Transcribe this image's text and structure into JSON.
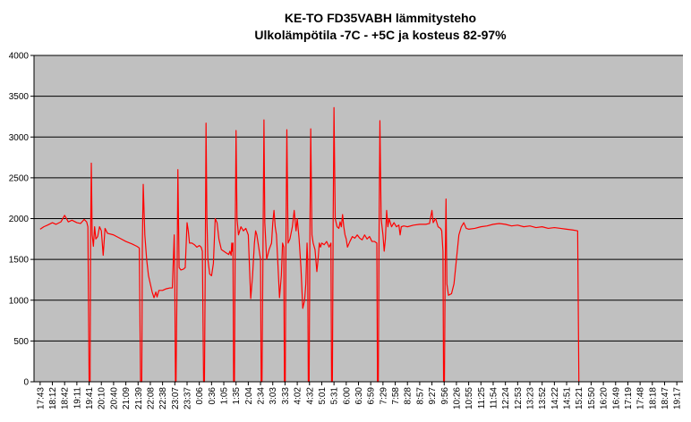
{
  "chart_data": {
    "type": "line",
    "title": "KE-TO FD35VABH lämmitysteho",
    "subtitle": "Ulkolämpötila  -7C - +5C ja kosteus 82-97%",
    "xlabel": "",
    "ylabel": "",
    "ylim": [
      0,
      4000
    ],
    "yticks": [
      0,
      500,
      1000,
      1500,
      2000,
      2500,
      3000,
      3500,
      4000
    ],
    "grid": true,
    "background_color": "#c0c0c0",
    "series_color": "#ff0000",
    "categories": [
      "17:43",
      "18:12",
      "18:42",
      "19:11",
      "19:41",
      "20:10",
      "20:40",
      "21:09",
      "21:39",
      "22:08",
      "22:38",
      "23:07",
      "23:37",
      "0:06",
      "0:36",
      "1:05",
      "1:35",
      "2:04",
      "2:34",
      "3:03",
      "3:33",
      "4:02",
      "4:32",
      "5:01",
      "5:31",
      "6:00",
      "6:30",
      "6:59",
      "7:29",
      "7:58",
      "8:28",
      "8:57",
      "9:27",
      "9:56",
      "10:26",
      "10:55",
      "11:25",
      "11:54",
      "12:24",
      "12:53",
      "13:23",
      "13:52",
      "14:22",
      "14:51",
      "15:21",
      "15:50",
      "16:20",
      "16:49",
      "17:19",
      "17:48",
      "18:18",
      "18:47",
      "19:17"
    ],
    "series": [
      {
        "points": [
          [
            0,
            1870
          ],
          [
            0.3,
            1900
          ],
          [
            0.6,
            1920
          ],
          [
            1.0,
            1950
          ],
          [
            1.3,
            1930
          ],
          [
            1.7,
            1960
          ],
          [
            2.0,
            2040
          ],
          [
            2.3,
            1960
          ],
          [
            2.6,
            1980
          ],
          [
            3.0,
            1950
          ],
          [
            3.3,
            1940
          ],
          [
            3.6,
            1990
          ],
          [
            3.8,
            1960
          ],
          [
            3.9,
            1900
          ],
          [
            4.0,
            0
          ],
          [
            4.08,
            0
          ],
          [
            4.12,
            1750
          ],
          [
            4.18,
            2680
          ],
          [
            4.25,
            1800
          ],
          [
            4.35,
            1660
          ],
          [
            4.45,
            1900
          ],
          [
            4.55,
            1750
          ],
          [
            4.7,
            1780
          ],
          [
            4.85,
            1900
          ],
          [
            5.0,
            1850
          ],
          [
            5.15,
            1550
          ],
          [
            5.3,
            1880
          ],
          [
            5.5,
            1820
          ],
          [
            6.0,
            1800
          ],
          [
            6.5,
            1760
          ],
          [
            7.0,
            1720
          ],
          [
            7.5,
            1690
          ],
          [
            7.9,
            1660
          ],
          [
            8.1,
            1640
          ],
          [
            8.2,
            0
          ],
          [
            8.3,
            0
          ],
          [
            8.35,
            1700
          ],
          [
            8.42,
            2420
          ],
          [
            8.55,
            1800
          ],
          [
            8.7,
            1500
          ],
          [
            8.85,
            1300
          ],
          [
            9.0,
            1200
          ],
          [
            9.15,
            1100
          ],
          [
            9.3,
            1030
          ],
          [
            9.45,
            1100
          ],
          [
            9.55,
            1040
          ],
          [
            9.7,
            1120
          ],
          [
            10.0,
            1120
          ],
          [
            10.3,
            1140
          ],
          [
            10.6,
            1150
          ],
          [
            10.8,
            1150
          ],
          [
            10.95,
            1800
          ],
          [
            11.0,
            1200
          ],
          [
            11.05,
            0
          ],
          [
            11.1,
            0
          ],
          [
            11.18,
            1200
          ],
          [
            11.25,
            2600
          ],
          [
            11.35,
            1400
          ],
          [
            11.5,
            1370
          ],
          [
            11.7,
            1380
          ],
          [
            11.85,
            1400
          ],
          [
            12.0,
            1950
          ],
          [
            12.1,
            1850
          ],
          [
            12.2,
            1700
          ],
          [
            12.4,
            1700
          ],
          [
            12.6,
            1680
          ],
          [
            12.8,
            1650
          ],
          [
            13.0,
            1670
          ],
          [
            13.15,
            1650
          ],
          [
            13.25,
            1600
          ],
          [
            13.35,
            0
          ],
          [
            13.42,
            0
          ],
          [
            13.48,
            1300
          ],
          [
            13.55,
            3170
          ],
          [
            13.62,
            2000
          ],
          [
            13.7,
            1500
          ],
          [
            13.85,
            1320
          ],
          [
            14.0,
            1300
          ],
          [
            14.15,
            1450
          ],
          [
            14.3,
            2000
          ],
          [
            14.45,
            1950
          ],
          [
            14.6,
            1750
          ],
          [
            14.8,
            1620
          ],
          [
            15.0,
            1600
          ],
          [
            15.2,
            1580
          ],
          [
            15.4,
            1560
          ],
          [
            15.5,
            1600
          ],
          [
            15.6,
            1550
          ],
          [
            15.65,
            1700
          ],
          [
            15.7,
            1600
          ],
          [
            15.75,
            1700
          ],
          [
            15.8,
            0
          ],
          [
            15.87,
            0
          ],
          [
            15.93,
            1700
          ],
          [
            16.0,
            3080
          ],
          [
            16.08,
            2000
          ],
          [
            16.2,
            1800
          ],
          [
            16.4,
            1900
          ],
          [
            16.6,
            1850
          ],
          [
            16.8,
            1880
          ],
          [
            17.0,
            1800
          ],
          [
            17.1,
            1400
          ],
          [
            17.2,
            1020
          ],
          [
            17.35,
            1300
          ],
          [
            17.5,
            1700
          ],
          [
            17.6,
            1850
          ],
          [
            17.7,
            1800
          ],
          [
            17.85,
            1650
          ],
          [
            18.0,
            1500
          ],
          [
            18.05,
            0
          ],
          [
            18.12,
            0
          ],
          [
            18.2,
            1600
          ],
          [
            18.28,
            3210
          ],
          [
            18.35,
            1950
          ],
          [
            18.5,
            1500
          ],
          [
            18.7,
            1620
          ],
          [
            18.9,
            1700
          ],
          [
            19.0,
            1950
          ],
          [
            19.1,
            2100
          ],
          [
            19.2,
            1900
          ],
          [
            19.3,
            1800
          ],
          [
            19.4,
            1500
          ],
          [
            19.55,
            1030
          ],
          [
            19.7,
            1300
          ],
          [
            19.8,
            1700
          ],
          [
            19.9,
            1650
          ],
          [
            19.95,
            0
          ],
          [
            20.02,
            0
          ],
          [
            20.08,
            1800
          ],
          [
            20.15,
            3090
          ],
          [
            20.25,
            1700
          ],
          [
            20.4,
            1750
          ],
          [
            20.6,
            1900
          ],
          [
            20.75,
            2100
          ],
          [
            20.9,
            1850
          ],
          [
            21.0,
            2000
          ],
          [
            21.15,
            1750
          ],
          [
            21.3,
            1400
          ],
          [
            21.45,
            900
          ],
          [
            21.6,
            1000
          ],
          [
            21.7,
            1200
          ],
          [
            21.8,
            1700
          ],
          [
            21.85,
            1500
          ],
          [
            21.9,
            0
          ],
          [
            21.97,
            0
          ],
          [
            22.03,
            1700
          ],
          [
            22.1,
            3100
          ],
          [
            22.2,
            1800
          ],
          [
            22.3,
            1700
          ],
          [
            22.45,
            1620
          ],
          [
            22.6,
            1350
          ],
          [
            22.7,
            1500
          ],
          [
            22.8,
            1700
          ],
          [
            22.9,
            1650
          ],
          [
            23.0,
            1700
          ],
          [
            23.2,
            1680
          ],
          [
            23.4,
            1720
          ],
          [
            23.6,
            1650
          ],
          [
            23.75,
            1700
          ],
          [
            23.8,
            0
          ],
          [
            23.87,
            0
          ],
          [
            23.93,
            1900
          ],
          [
            24.0,
            3360
          ],
          [
            24.1,
            2000
          ],
          [
            24.25,
            1900
          ],
          [
            24.4,
            1880
          ],
          [
            24.5,
            1960
          ],
          [
            24.6,
            1900
          ],
          [
            24.7,
            2050
          ],
          [
            24.8,
            1900
          ],
          [
            24.9,
            1800
          ],
          [
            25.0,
            1750
          ],
          [
            25.1,
            1650
          ],
          [
            25.3,
            1720
          ],
          [
            25.5,
            1780
          ],
          [
            25.7,
            1760
          ],
          [
            25.9,
            1800
          ],
          [
            26.1,
            1760
          ],
          [
            26.3,
            1740
          ],
          [
            26.5,
            1800
          ],
          [
            26.7,
            1750
          ],
          [
            26.9,
            1780
          ],
          [
            27.1,
            1720
          ],
          [
            27.3,
            1720
          ],
          [
            27.5,
            1700
          ],
          [
            27.55,
            0
          ],
          [
            27.62,
            0
          ],
          [
            27.68,
            1800
          ],
          [
            27.75,
            3200
          ],
          [
            27.85,
            2000
          ],
          [
            28.0,
            1800
          ],
          [
            28.1,
            1600
          ],
          [
            28.2,
            1750
          ],
          [
            28.3,
            2100
          ],
          [
            28.4,
            1900
          ],
          [
            28.5,
            2000
          ],
          [
            28.7,
            1900
          ],
          [
            28.9,
            1950
          ],
          [
            29.1,
            1900
          ],
          [
            29.3,
            1920
          ],
          [
            29.4,
            1800
          ],
          [
            29.5,
            1900
          ],
          [
            29.7,
            1910
          ],
          [
            30.0,
            1900
          ],
          [
            30.5,
            1920
          ],
          [
            31.0,
            1930
          ],
          [
            31.5,
            1930
          ],
          [
            31.8,
            1940
          ],
          [
            32.0,
            2100
          ],
          [
            32.1,
            1950
          ],
          [
            32.3,
            2000
          ],
          [
            32.5,
            1900
          ],
          [
            32.7,
            1880
          ],
          [
            32.8,
            1850
          ],
          [
            32.9,
            1600
          ],
          [
            32.95,
            0
          ],
          [
            33.02,
            0
          ],
          [
            33.08,
            1400
          ],
          [
            33.15,
            2240
          ],
          [
            33.22,
            1200
          ],
          [
            33.35,
            1060
          ],
          [
            33.6,
            1080
          ],
          [
            33.8,
            1200
          ],
          [
            34.0,
            1500
          ],
          [
            34.2,
            1800
          ],
          [
            34.4,
            1900
          ],
          [
            34.6,
            1950
          ],
          [
            34.8,
            1880
          ],
          [
            35.0,
            1870
          ],
          [
            35.5,
            1880
          ],
          [
            36.0,
            1900
          ],
          [
            36.5,
            1910
          ],
          [
            37.0,
            1930
          ],
          [
            37.5,
            1940
          ],
          [
            38.0,
            1930
          ],
          [
            38.5,
            1910
          ],
          [
            39.0,
            1920
          ],
          [
            39.5,
            1900
          ],
          [
            40.0,
            1910
          ],
          [
            40.5,
            1890
          ],
          [
            41.0,
            1900
          ],
          [
            41.5,
            1880
          ],
          [
            42.0,
            1890
          ],
          [
            42.5,
            1880
          ],
          [
            43.0,
            1870
          ],
          [
            43.5,
            1860
          ],
          [
            43.9,
            1850
          ],
          [
            44.0,
            0
          ]
        ]
      }
    ]
  }
}
